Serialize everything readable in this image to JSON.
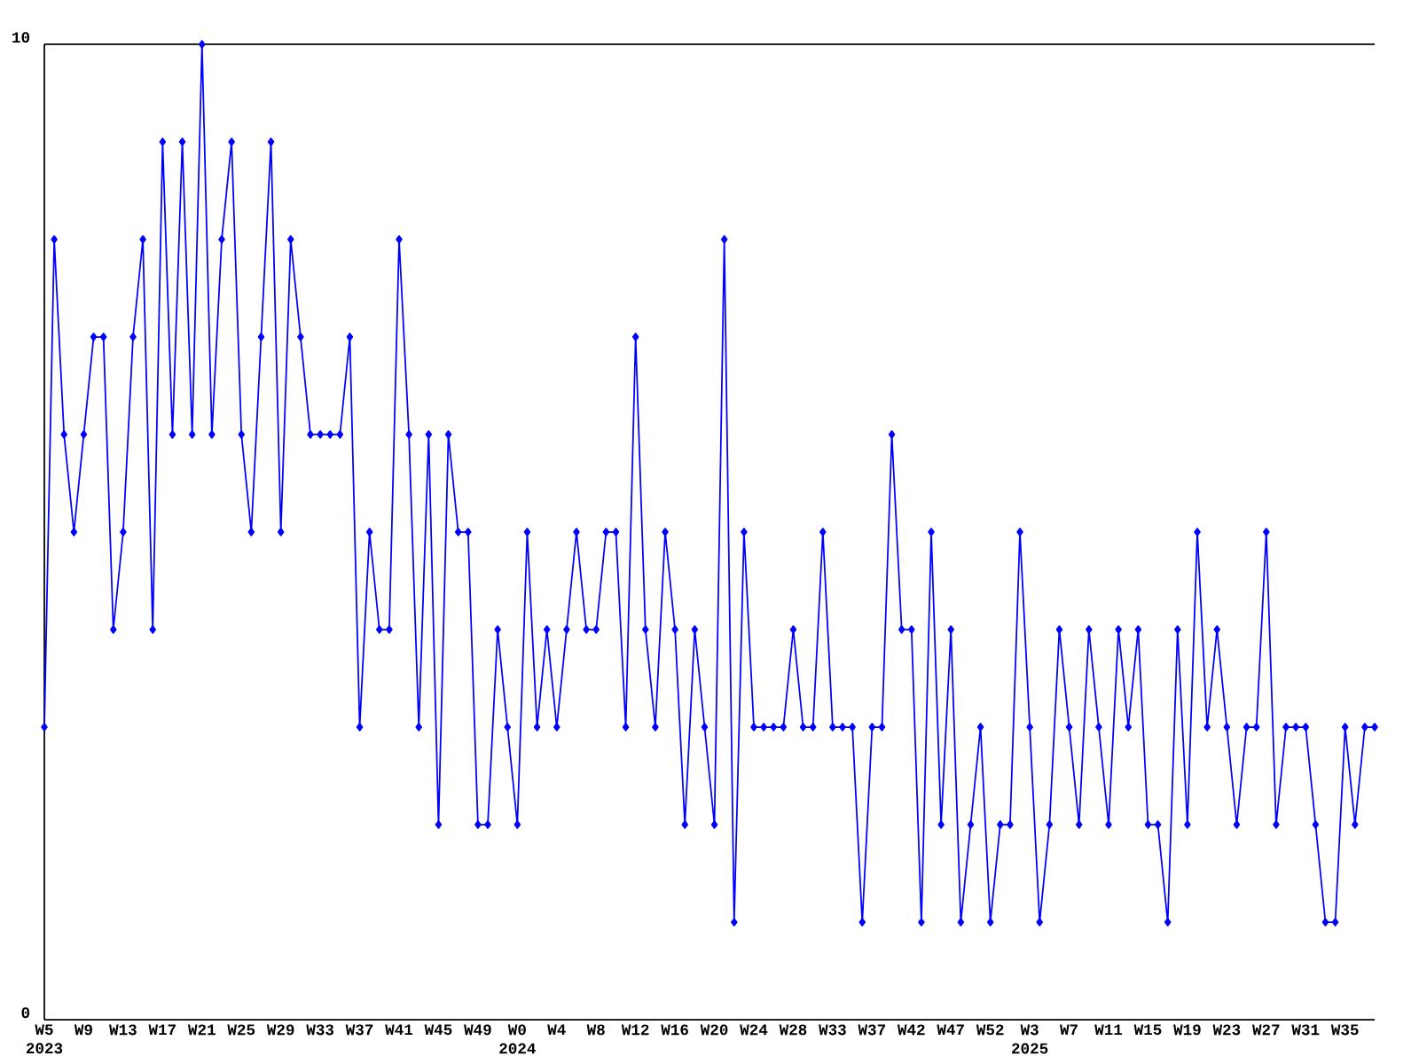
{
  "chart_data": {
    "type": "line",
    "color": "#0000ff",
    "marker": "diamond",
    "line_style": "solid",
    "categories": [
      "W5 2023",
      null,
      null,
      null,
      "W9",
      null,
      null,
      null,
      "W13",
      null,
      null,
      null,
      "W17",
      null,
      null,
      null,
      "W21",
      null,
      null,
      null,
      "W25",
      null,
      null,
      null,
      "W29",
      null,
      null,
      null,
      "W33",
      null,
      null,
      null,
      "W37",
      null,
      null,
      null,
      "W41",
      null,
      null,
      null,
      "W45",
      null,
      null,
      null,
      "W49",
      null,
      null,
      null,
      "W0 2024",
      null,
      null,
      null,
      "W4",
      null,
      null,
      null,
      "W8",
      null,
      null,
      null,
      "W12",
      null,
      null,
      null,
      "W16",
      null,
      null,
      null,
      "W20",
      null,
      null,
      null,
      "W24",
      null,
      null,
      null,
      "W28",
      null,
      null,
      null,
      "W33",
      null,
      null,
      null,
      "W37",
      null,
      null,
      null,
      "W42",
      null,
      null,
      null,
      "W47",
      null,
      null,
      null,
      "W52",
      null,
      null,
      null,
      "W3 2025",
      null,
      null,
      null,
      "W7",
      null,
      null,
      null,
      "W11",
      null,
      null,
      null,
      "W15",
      null,
      null,
      null,
      "W19",
      null,
      null,
      null,
      "W23",
      null,
      null,
      null,
      "W27",
      null,
      null,
      null,
      "W31",
      null,
      null,
      null,
      "W35",
      null,
      null,
      null
    ],
    "values": [
      3,
      8,
      6,
      5,
      6,
      7,
      7,
      4,
      5,
      7,
      8,
      4,
      9,
      6,
      9,
      6,
      10,
      6,
      8,
      9,
      6,
      5,
      7,
      9,
      5,
      8,
      7,
      6,
      6,
      6,
      6,
      7,
      3,
      5,
      4,
      4,
      8,
      6,
      3,
      6,
      2,
      6,
      5,
      5,
      2,
      2,
      4,
      3,
      2,
      5,
      3,
      4,
      3,
      4,
      5,
      4,
      4,
      5,
      5,
      3,
      7,
      4,
      3,
      5,
      4,
      2,
      4,
      3,
      2,
      8,
      1,
      5,
      3,
      3,
      3,
      3,
      4,
      3,
      3,
      5,
      3,
      3,
      3,
      1,
      3,
      3,
      6,
      4,
      4,
      1,
      5,
      2,
      4,
      1,
      2,
      3,
      1,
      2,
      2,
      5,
      3,
      1,
      2,
      4,
      3,
      2,
      4,
      3,
      2,
      4,
      3,
      4,
      2,
      2,
      1,
      4,
      2,
      5,
      3,
      4,
      3,
      2,
      3,
      3,
      5,
      2,
      3,
      3,
      3,
      2,
      1,
      1,
      3,
      2,
      3,
      3
    ],
    "ylim": [
      0,
      10
    ],
    "yticks": [
      0,
      10
    ]
  }
}
